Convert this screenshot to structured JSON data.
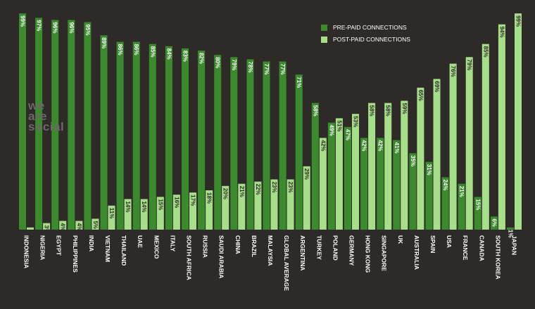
{
  "legend": {
    "prepaid_label": "PRE-PAID CONNECTIONS",
    "postpaid_label": "POST-PAID CONNECTIONS"
  },
  "logo": {
    "line1": "we",
    "line2": "are",
    "line3": "social"
  },
  "colors": {
    "background": "#2e2a28",
    "prepaid": "#3b8a2e",
    "postpaid": "#a6de8a",
    "label": "#ffffff",
    "value_on_dark": "#ffffff",
    "value_on_light": "#2e2a28"
  },
  "chart_data": {
    "type": "bar",
    "ylim": [
      0,
      100
    ],
    "categories": [
      "INDONESIA",
      "NIGERIA",
      "EGYPT",
      "PHILIPPINES",
      "INDIA",
      "VIETNAM",
      "THAILAND",
      "UAE",
      "MEXICO",
      "ITALY",
      "SOUTH AFRICA",
      "RUSSIA",
      "SAUDI ARABIA",
      "CHINA",
      "BRAZIL",
      "MALAYSIA",
      "GLOBAL AVERAGE",
      "ARGENTINA",
      "TURKEY",
      "POLAND",
      "GERMANY",
      "HONG KONG",
      "SINGAPORE",
      "UK",
      "AUSTRALIA",
      "SPAIN",
      "USA",
      "FRANCE",
      "CANADA",
      "SOUTH KOREA",
      "JAPAN"
    ],
    "series": [
      {
        "name": "PRE-PAID CONNECTIONS",
        "values": [
          99,
          97,
          96,
          96,
          95,
          89,
          86,
          86,
          85,
          84,
          83,
          82,
          80,
          79,
          78,
          77,
          77,
          71,
          58,
          49,
          47,
          42,
          42,
          41,
          35,
          31,
          24,
          21,
          15,
          6,
          1
        ],
        "labels": [
          "99%",
          "97%",
          "96%",
          "96%",
          "95%",
          "89%",
          "86%",
          "86%",
          "85%",
          "84%",
          "83%",
          "82%",
          "80%",
          "79%",
          "78%",
          "77%",
          "77%",
          "71%",
          "58%",
          "49%",
          "47%",
          "42%",
          "42%",
          "41%",
          "35%",
          "31%",
          "24%",
          "21%",
          "15%",
          "6%",
          "1%"
        ]
      },
      {
        "name": "POST-PAID CONNECTIONS",
        "values": [
          1,
          3,
          4,
          4,
          5,
          11,
          14,
          14,
          15,
          16,
          17,
          18,
          20,
          21,
          22,
          23,
          23,
          29,
          42,
          51,
          53,
          58,
          58,
          59,
          65,
          69,
          76,
          79,
          85,
          94,
          99
        ],
        "labels": [
          "1%",
          "3%",
          "4%",
          "4%",
          "5%",
          "11%",
          "14%",
          "14%",
          "15%",
          "16%",
          "17%",
          "18%",
          "20%",
          "21%",
          "22%",
          "23%",
          "23%",
          "29%",
          "42%",
          "51%",
          "53%",
          "58%",
          "58%",
          "59%",
          "65%",
          "69%",
          "76%",
          "79%",
          "85%",
          "94%",
          "99%"
        ]
      }
    ]
  }
}
